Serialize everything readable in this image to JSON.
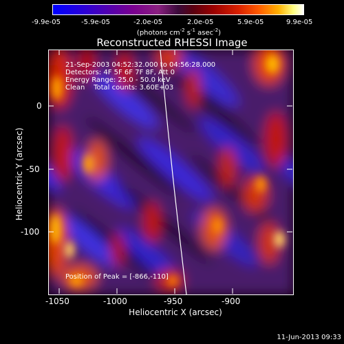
{
  "colorbar": {
    "ticks": [
      "-9.9e-05",
      "-5.9e-05",
      "-2.0e-05",
      "2.0e-05",
      "5.9e-05",
      "9.9e-05"
    ],
    "unit_text": "(photons cm",
    "unit_exp1": "-2",
    "unit_mid": " s",
    "unit_exp2": "-1",
    "unit_tail": " asec",
    "unit_exp3": "-2",
    "unit_close": ")"
  },
  "title": "Reconstructed RHESSI Image",
  "info": {
    "line1": "21-Sep-2003 04:52:32.000 to 04:56:28.000",
    "line2": "Detectors: 4F 5F 6F 7F 8F, Att 0",
    "line3": "Energy Range: 25.0 - 50.0 keV",
    "line4": "Clean    Total counts: 3.60E+03",
    "peak": "Position of Peak = [-866,-110]"
  },
  "x_axis": {
    "label": "Heliocentric X (arcsec)",
    "ticks": [
      "-1050",
      "-1000",
      "-950",
      "-900"
    ]
  },
  "y_axis": {
    "label": "Heliocentric Y (arcsec)",
    "ticks": [
      "0",
      "-50",
      "-100"
    ]
  },
  "timestamp": "11-Jun-2013 09:33",
  "colors": {
    "background": "#000000",
    "axis": "#ffffff",
    "limb": "#ffffff"
  }
}
